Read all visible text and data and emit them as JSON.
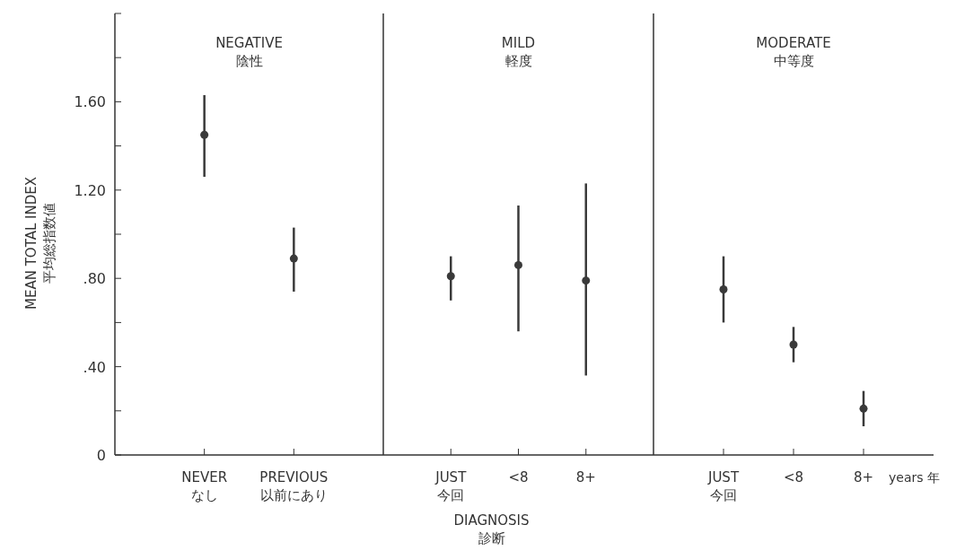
{
  "chart_data": [
    {
      "type": "scatter",
      "title": "NEGATIVE\n陰性",
      "ylabel": "MEAN TOTAL INDEX\n平均総指数値",
      "categories": [
        "NEVER\nなし",
        "PREVIOUS\n以前にあり"
      ],
      "values": [
        1.45,
        0.89
      ],
      "errors": [
        [
          1.26,
          1.63
        ],
        [
          0.74,
          1.03
        ]
      ],
      "color": "#3a3a3a",
      "marker": "circle",
      "ylim": [
        0,
        2.0
      ],
      "yticks": [
        0,
        {
          "value": 0.2,
          "label": null
        },
        {
          "value": 0.4,
          "label": ".40"
        },
        {
          "value": 0.6,
          "label": null
        },
        {
          "value": 0.8,
          "label": ".80"
        },
        {
          "value": 1.0,
          "label": null
        },
        {
          "value": 1.2,
          "label": "1.20"
        },
        {
          "value": 1.4,
          "label": null
        },
        {
          "value": 1.6,
          "label": "1.60"
        },
        {
          "value": 1.8,
          "label": null
        },
        {
          "value": 2.0,
          "label": null
        }
      ]
    },
    {
      "type": "scatter",
      "title": "MILD\n軽度",
      "xlabel": "DIAGNOSIS\n診断",
      "categories": [
        "JUST\n今回",
        "<8",
        "8+"
      ],
      "values": [
        0.81,
        0.86,
        0.79
      ],
      "errors": [
        [
          0.7,
          0.9
        ],
        [
          0.56,
          1.13
        ],
        [
          0.36,
          1.23
        ]
      ],
      "color": "#3a3a3a",
      "marker": "circle",
      "ylim": [
        0,
        2.0
      ],
      "tick_labels": "x"
    },
    {
      "type": "scatter",
      "title": "MODERATE\n中等度",
      "categories": [
        "JUST\n今回",
        "<8",
        "8+"
      ],
      "values": [
        0.75,
        0.5,
        0.21
      ],
      "errors": [
        [
          0.6,
          0.9
        ],
        [
          0.42,
          0.58
        ],
        [
          0.13,
          0.29
        ]
      ],
      "color": "#3a3a3a",
      "marker": "circle",
      "ylim": [
        0,
        2.0
      ],
      "tick_labels": "x",
      "annotations": [
        "years 年"
      ]
    }
  ]
}
